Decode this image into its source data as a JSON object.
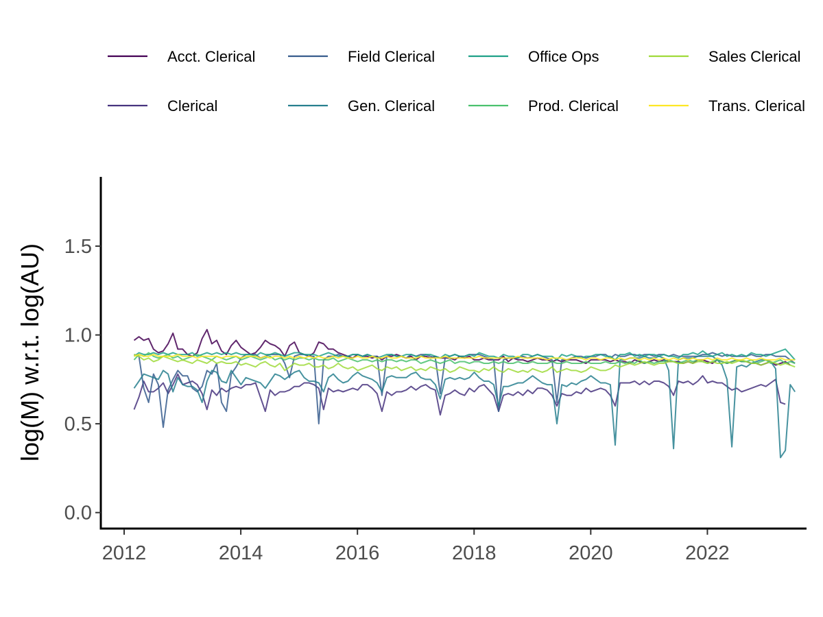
{
  "chart_data": {
    "type": "line",
    "title": "",
    "xlabel": "",
    "ylabel": "log(M) w.r.t. log(AU)",
    "xlim": [
      2011.6,
      2023.7
    ],
    "ylim": [
      -0.09,
      1.89
    ],
    "x_ticks": [
      2012,
      2014,
      2016,
      2018,
      2020,
      2022
    ],
    "x_tick_labels": [
      "2012",
      "2014",
      "2016",
      "2018",
      "2020",
      "2022"
    ],
    "y_ticks": [
      0.0,
      0.5,
      1.0,
      1.5
    ],
    "y_tick_labels": [
      "0.0",
      "0.5",
      "1.0",
      "1.5"
    ],
    "grid": false,
    "legend_position": "top",
    "x_start": 2012.17,
    "x_step": 0.08333,
    "series": [
      {
        "name": "Acct. Clerical",
        "color": "#440154",
        "values": [
          0.97,
          0.99,
          0.97,
          0.98,
          0.92,
          0.9,
          0.91,
          0.95,
          1.01,
          0.92,
          0.92,
          0.89,
          0.88,
          0.9,
          0.98,
          1.03,
          0.95,
          0.97,
          0.91,
          0.89,
          0.94,
          0.97,
          0.93,
          0.91,
          0.89,
          0.9,
          0.93,
          0.97,
          0.95,
          0.94,
          0.92,
          0.88,
          0.94,
          0.96,
          0.9,
          0.89,
          0.88,
          0.9,
          0.96,
          0.95,
          0.92,
          0.92,
          0.9,
          0.89,
          0.88,
          0.87,
          0.89,
          0.88,
          0.88,
          0.87,
          0.88,
          0.86,
          0.88,
          0.88,
          0.89,
          0.88,
          0.87,
          0.88,
          0.86,
          0.88,
          0.88,
          0.87,
          0.88,
          0.87,
          0.87,
          0.87,
          0.86,
          0.88,
          0.87,
          0.88,
          0.86,
          0.86,
          0.87,
          0.86,
          0.86,
          0.86,
          0.88,
          0.85,
          0.87,
          0.86,
          0.86,
          0.85,
          0.86,
          0.87,
          0.86,
          0.86,
          0.85,
          0.86,
          0.85,
          0.86,
          0.86,
          0.86,
          0.85,
          0.84,
          0.86,
          0.86,
          0.86,
          0.86,
          0.85,
          0.86,
          0.85,
          0.85,
          0.84,
          0.86,
          0.85,
          0.84,
          0.85,
          0.86,
          0.85,
          0.86,
          0.85,
          0.85,
          0.85,
          0.84,
          0.85,
          0.84,
          0.86,
          0.86,
          0.85,
          0.84,
          0.86,
          0.85,
          0.84,
          0.85,
          0.86,
          0.85,
          0.85,
          0.84,
          0.84,
          0.83,
          0.84,
          0.85,
          0.83,
          0.84,
          0.85,
          0.83
        ]
      },
      {
        "name": "Clerical",
        "color": "#46337E",
        "values": [
          0.58,
          0.65,
          0.74,
          0.68,
          0.68,
          0.7,
          0.73,
          0.67,
          0.72,
          0.78,
          0.72,
          0.73,
          0.74,
          0.72,
          0.67,
          0.58,
          0.69,
          0.66,
          0.7,
          0.68,
          0.7,
          0.71,
          0.7,
          0.72,
          0.72,
          0.73,
          0.65,
          0.57,
          0.69,
          0.66,
          0.68,
          0.68,
          0.69,
          0.71,
          0.71,
          0.73,
          0.73,
          0.72,
          0.7,
          0.58,
          0.7,
          0.68,
          0.69,
          0.68,
          0.69,
          0.7,
          0.69,
          0.72,
          0.72,
          0.7,
          0.67,
          0.57,
          0.68,
          0.66,
          0.68,
          0.68,
          0.69,
          0.71,
          0.69,
          0.71,
          0.72,
          0.7,
          0.69,
          0.55,
          0.66,
          0.67,
          0.69,
          0.67,
          0.66,
          0.7,
          0.68,
          0.71,
          0.72,
          0.69,
          0.66,
          0.57,
          0.66,
          0.67,
          0.66,
          0.68,
          0.66,
          0.69,
          0.67,
          0.7,
          0.7,
          0.69,
          0.66,
          0.6,
          0.67,
          0.66,
          0.66,
          0.68,
          0.67,
          0.7,
          0.68,
          0.69,
          0.7,
          0.69,
          0.66,
          0.6,
          0.73,
          0.73,
          0.73,
          0.74,
          0.72,
          0.74,
          0.72,
          0.74,
          0.74,
          0.73,
          0.71,
          0.66,
          0.74,
          0.73,
          0.74,
          0.72,
          0.74,
          0.77,
          0.73,
          0.74,
          0.73,
          0.73,
          0.71,
          0.69,
          0.7,
          0.68,
          0.69,
          0.7,
          0.71,
          0.72,
          0.71,
          0.73,
          0.75,
          0.62,
          0.61
        ]
      },
      {
        "name": "Field Clerical",
        "color": "#365C8D",
        "values": [
          0.89,
          0.88,
          0.7,
          0.62,
          0.78,
          0.72,
          0.48,
          0.69,
          0.75,
          0.8,
          0.77,
          0.77,
          0.7,
          0.68,
          0.71,
          0.8,
          0.78,
          0.84,
          0.62,
          0.57,
          0.78,
          0.82,
          0.87,
          0.89,
          0.89,
          0.89,
          0.87,
          0.88,
          0.89,
          0.89,
          0.89,
          0.84,
          0.76,
          0.88,
          0.89,
          0.89,
          0.88,
          0.88,
          0.5,
          0.86,
          0.88,
          0.88,
          0.89,
          0.88,
          0.88,
          0.89,
          0.89,
          0.88,
          0.89,
          0.88,
          0.88,
          0.66,
          0.88,
          0.89,
          0.88,
          0.88,
          0.87,
          0.89,
          0.88,
          0.89,
          0.89,
          0.88,
          0.87,
          0.67,
          0.87,
          0.88,
          0.89,
          0.88,
          0.88,
          0.89,
          0.89,
          0.89,
          0.88,
          0.87,
          0.86,
          0.57,
          0.86,
          0.87,
          0.87,
          0.87,
          0.88,
          0.87,
          0.88,
          0.89,
          0.88,
          0.87,
          0.86,
          0.62,
          0.86,
          0.86,
          0.87,
          0.88,
          0.88,
          0.87,
          0.88,
          0.88,
          0.89,
          0.89,
          0.87,
          0.89,
          0.88,
          0.88,
          0.89,
          0.89,
          0.88,
          0.89,
          0.89,
          0.88,
          0.89,
          0.89,
          0.88,
          0.89,
          0.88,
          0.88,
          0.88,
          0.88,
          0.88,
          0.89,
          0.89,
          0.9,
          0.89,
          0.88,
          0.89,
          0.88,
          0.88,
          0.88,
          0.88,
          0.89,
          0.88,
          0.88,
          0.89,
          0.89,
          0.88,
          0.88,
          0.88,
          0.86,
          0.84
        ]
      },
      {
        "name": "Gen. Clerical",
        "color": "#277F8E",
        "values": [
          0.7,
          0.74,
          0.78,
          0.77,
          0.76,
          0.75,
          0.8,
          0.78,
          0.68,
          0.76,
          0.72,
          0.71,
          0.71,
          0.69,
          0.62,
          0.74,
          0.8,
          0.79,
          0.74,
          0.73,
          0.8,
          0.76,
          0.72,
          0.76,
          0.75,
          0.74,
          0.73,
          0.7,
          0.74,
          0.78,
          0.77,
          0.75,
          0.77,
          0.79,
          0.8,
          0.76,
          0.74,
          0.74,
          0.73,
          0.68,
          0.76,
          0.78,
          0.75,
          0.73,
          0.74,
          0.77,
          0.79,
          0.77,
          0.76,
          0.75,
          0.73,
          0.68,
          0.76,
          0.77,
          0.76,
          0.76,
          0.76,
          0.78,
          0.79,
          0.76,
          0.75,
          0.75,
          0.72,
          0.64,
          0.75,
          0.76,
          0.75,
          0.76,
          0.75,
          0.76,
          0.79,
          0.76,
          0.74,
          0.74,
          0.72,
          0.6,
          0.71,
          0.71,
          0.72,
          0.73,
          0.73,
          0.75,
          0.77,
          0.75,
          0.73,
          0.72,
          0.72,
          0.5,
          0.72,
          0.71,
          0.73,
          0.72,
          0.74,
          0.75,
          0.77,
          0.75,
          0.73,
          0.73,
          0.72,
          0.38,
          0.86,
          0.86,
          0.87,
          0.87,
          0.87,
          0.88,
          0.87,
          0.87,
          0.88,
          0.87,
          0.8,
          0.36,
          0.86,
          0.87,
          0.87,
          0.87,
          0.88,
          0.88,
          0.88,
          0.88,
          0.86,
          0.83,
          0.75,
          0.37,
          0.82,
          0.83,
          0.82,
          0.84,
          0.85,
          0.86,
          0.86,
          0.85,
          0.81,
          0.31,
          0.35,
          0.72,
          0.68
        ]
      },
      {
        "name": "Office Ops",
        "color": "#1FA187",
        "values": [
          0.88,
          0.9,
          0.89,
          0.89,
          0.9,
          0.89,
          0.9,
          0.89,
          0.9,
          0.89,
          0.89,
          0.89,
          0.9,
          0.88,
          0.89,
          0.9,
          0.89,
          0.9,
          0.89,
          0.9,
          0.89,
          0.9,
          0.89,
          0.89,
          0.89,
          0.88,
          0.9,
          0.89,
          0.89,
          0.9,
          0.89,
          0.88,
          0.89,
          0.9,
          0.9,
          0.89,
          0.89,
          0.89,
          0.88,
          0.89,
          0.9,
          0.89,
          0.88,
          0.88,
          0.88,
          0.89,
          0.89,
          0.88,
          0.89,
          0.88,
          0.87,
          0.88,
          0.89,
          0.89,
          0.88,
          0.88,
          0.89,
          0.89,
          0.88,
          0.88,
          0.89,
          0.89,
          0.88,
          0.87,
          0.89,
          0.88,
          0.89,
          0.88,
          0.88,
          0.89,
          0.88,
          0.9,
          0.89,
          0.88,
          0.88,
          0.87,
          0.89,
          0.88,
          0.88,
          0.87,
          0.89,
          0.89,
          0.88,
          0.89,
          0.88,
          0.88,
          0.88,
          0.86,
          0.89,
          0.88,
          0.89,
          0.88,
          0.87,
          0.88,
          0.88,
          0.89,
          0.89,
          0.88,
          0.88,
          0.86,
          0.89,
          0.89,
          0.9,
          0.88,
          0.89,
          0.88,
          0.89,
          0.89,
          0.88,
          0.89,
          0.88,
          0.88,
          0.87,
          0.89,
          0.89,
          0.9,
          0.89,
          0.91,
          0.89,
          0.88,
          0.89,
          0.9,
          0.88,
          0.89,
          0.88,
          0.89,
          0.88,
          0.9,
          0.89,
          0.89,
          0.88,
          0.89,
          0.9,
          0.91,
          0.92,
          0.89,
          0.86
        ]
      },
      {
        "name": "Prod. Clerical",
        "color": "#4AC16D",
        "values": [
          0.86,
          0.89,
          0.88,
          0.9,
          0.88,
          0.87,
          0.88,
          0.89,
          0.87,
          0.88,
          0.86,
          0.87,
          0.88,
          0.89,
          0.88,
          0.87,
          0.86,
          0.88,
          0.87,
          0.86,
          0.87,
          0.88,
          0.86,
          0.87,
          0.88,
          0.87,
          0.86,
          0.87,
          0.88,
          0.86,
          0.87,
          0.86,
          0.87,
          0.86,
          0.87,
          0.87,
          0.86,
          0.87,
          0.86,
          0.86,
          0.86,
          0.87,
          0.85,
          0.86,
          0.87,
          0.86,
          0.85,
          0.86,
          0.86,
          0.85,
          0.86,
          0.85,
          0.86,
          0.86,
          0.85,
          0.86,
          0.85,
          0.86,
          0.86,
          0.84,
          0.85,
          0.86,
          0.85,
          0.84,
          0.85,
          0.86,
          0.84,
          0.85,
          0.85,
          0.84,
          0.85,
          0.85,
          0.84,
          0.84,
          0.85,
          0.84,
          0.85,
          0.84,
          0.84,
          0.85,
          0.84,
          0.84,
          0.85,
          0.84,
          0.84,
          0.84,
          0.85,
          0.84,
          0.84,
          0.85,
          0.84,
          0.84,
          0.84,
          0.85,
          0.84,
          0.84,
          0.84,
          0.85,
          0.84,
          0.84,
          0.85,
          0.84,
          0.85,
          0.84,
          0.86,
          0.84,
          0.85,
          0.84,
          0.85,
          0.85,
          0.86,
          0.85,
          0.84,
          0.85,
          0.86,
          0.85,
          0.86,
          0.85,
          0.84,
          0.85,
          0.86,
          0.85,
          0.84,
          0.85,
          0.86,
          0.85,
          0.85,
          0.86,
          0.84,
          0.85,
          0.86,
          0.84,
          0.85,
          0.86,
          0.84,
          0.85,
          0.84
        ]
      },
      {
        "name": "Sales Clerical",
        "color": "#9FDA3A",
        "values": [
          0.89,
          0.88,
          0.86,
          0.87,
          0.85,
          0.86,
          0.88,
          0.87,
          0.86,
          0.85,
          0.86,
          0.85,
          0.84,
          0.86,
          0.85,
          0.84,
          0.86,
          0.84,
          0.85,
          0.84,
          0.84,
          0.85,
          0.83,
          0.84,
          0.83,
          0.82,
          0.84,
          0.85,
          0.83,
          0.82,
          0.84,
          0.8,
          0.82,
          0.84,
          0.83,
          0.83,
          0.84,
          0.82,
          0.82,
          0.83,
          0.81,
          0.82,
          0.84,
          0.82,
          0.81,
          0.82,
          0.8,
          0.81,
          0.82,
          0.83,
          0.81,
          0.8,
          0.82,
          0.81,
          0.82,
          0.8,
          0.81,
          0.82,
          0.8,
          0.81,
          0.8,
          0.82,
          0.81,
          0.8,
          0.81,
          0.79,
          0.8,
          0.82,
          0.81,
          0.8,
          0.8,
          0.79,
          0.81,
          0.8,
          0.82,
          0.8,
          0.79,
          0.81,
          0.8,
          0.79,
          0.8,
          0.79,
          0.81,
          0.8,
          0.79,
          0.8,
          0.82,
          0.79,
          0.8,
          0.81,
          0.8,
          0.8,
          0.79,
          0.8,
          0.82,
          0.81,
          0.8,
          0.8,
          0.81,
          0.83,
          0.82,
          0.83,
          0.84,
          0.83,
          0.84,
          0.85,
          0.84,
          0.83,
          0.84,
          0.84,
          0.85,
          0.85,
          0.84,
          0.84,
          0.85,
          0.84,
          0.85,
          0.85,
          0.84,
          0.85,
          0.84,
          0.84,
          0.85,
          0.84,
          0.85,
          0.86,
          0.85,
          0.84,
          0.84,
          0.83,
          0.84,
          0.85,
          0.84,
          0.83,
          0.84,
          0.83,
          0.82
        ]
      },
      {
        "name": "Trans. Clerical",
        "color": "#FDE725",
        "values": [
          0.88,
          0.89,
          0.88,
          0.88,
          0.89,
          0.88,
          0.88,
          0.88,
          0.88,
          0.89,
          0.88,
          0.88,
          0.88,
          0.87,
          0.88,
          0.88,
          0.88,
          0.88,
          0.87,
          0.88,
          0.88,
          0.88,
          0.87,
          0.88,
          0.88,
          0.88,
          0.87,
          0.88,
          0.87,
          0.88,
          0.88,
          0.87,
          0.88,
          0.87,
          0.88,
          0.87,
          0.88,
          0.87,
          0.88,
          0.87,
          0.87,
          0.88,
          0.87,
          0.88,
          0.87,
          0.87,
          0.88,
          0.87,
          0.87,
          0.88,
          0.87,
          0.87,
          0.88,
          0.87,
          0.87,
          0.88,
          0.87,
          0.87,
          0.87,
          0.88,
          0.87,
          0.87,
          0.87,
          0.87,
          0.88,
          0.87,
          0.87,
          0.87,
          0.87,
          0.87,
          0.87,
          0.88,
          0.87,
          0.87,
          0.87,
          0.87,
          0.87,
          0.87,
          0.87,
          0.88,
          0.87,
          0.87,
          0.87,
          0.87,
          0.87,
          0.86,
          0.87,
          0.87,
          0.87,
          0.86,
          0.87,
          0.87,
          0.87,
          0.86,
          0.87,
          0.87,
          0.86,
          0.87,
          0.87,
          0.86,
          0.87,
          0.86,
          0.87,
          0.87,
          0.86,
          0.87,
          0.86,
          0.87,
          0.86,
          0.87,
          0.86,
          0.87,
          0.86,
          0.87,
          0.86,
          0.87,
          0.86,
          0.86,
          0.87,
          0.86,
          0.87,
          0.86,
          0.86,
          0.87,
          0.86,
          0.86,
          0.87,
          0.86,
          0.86,
          0.87,
          0.86,
          0.86,
          0.86,
          0.87,
          0.86,
          0.86,
          0.86
        ]
      }
    ]
  }
}
